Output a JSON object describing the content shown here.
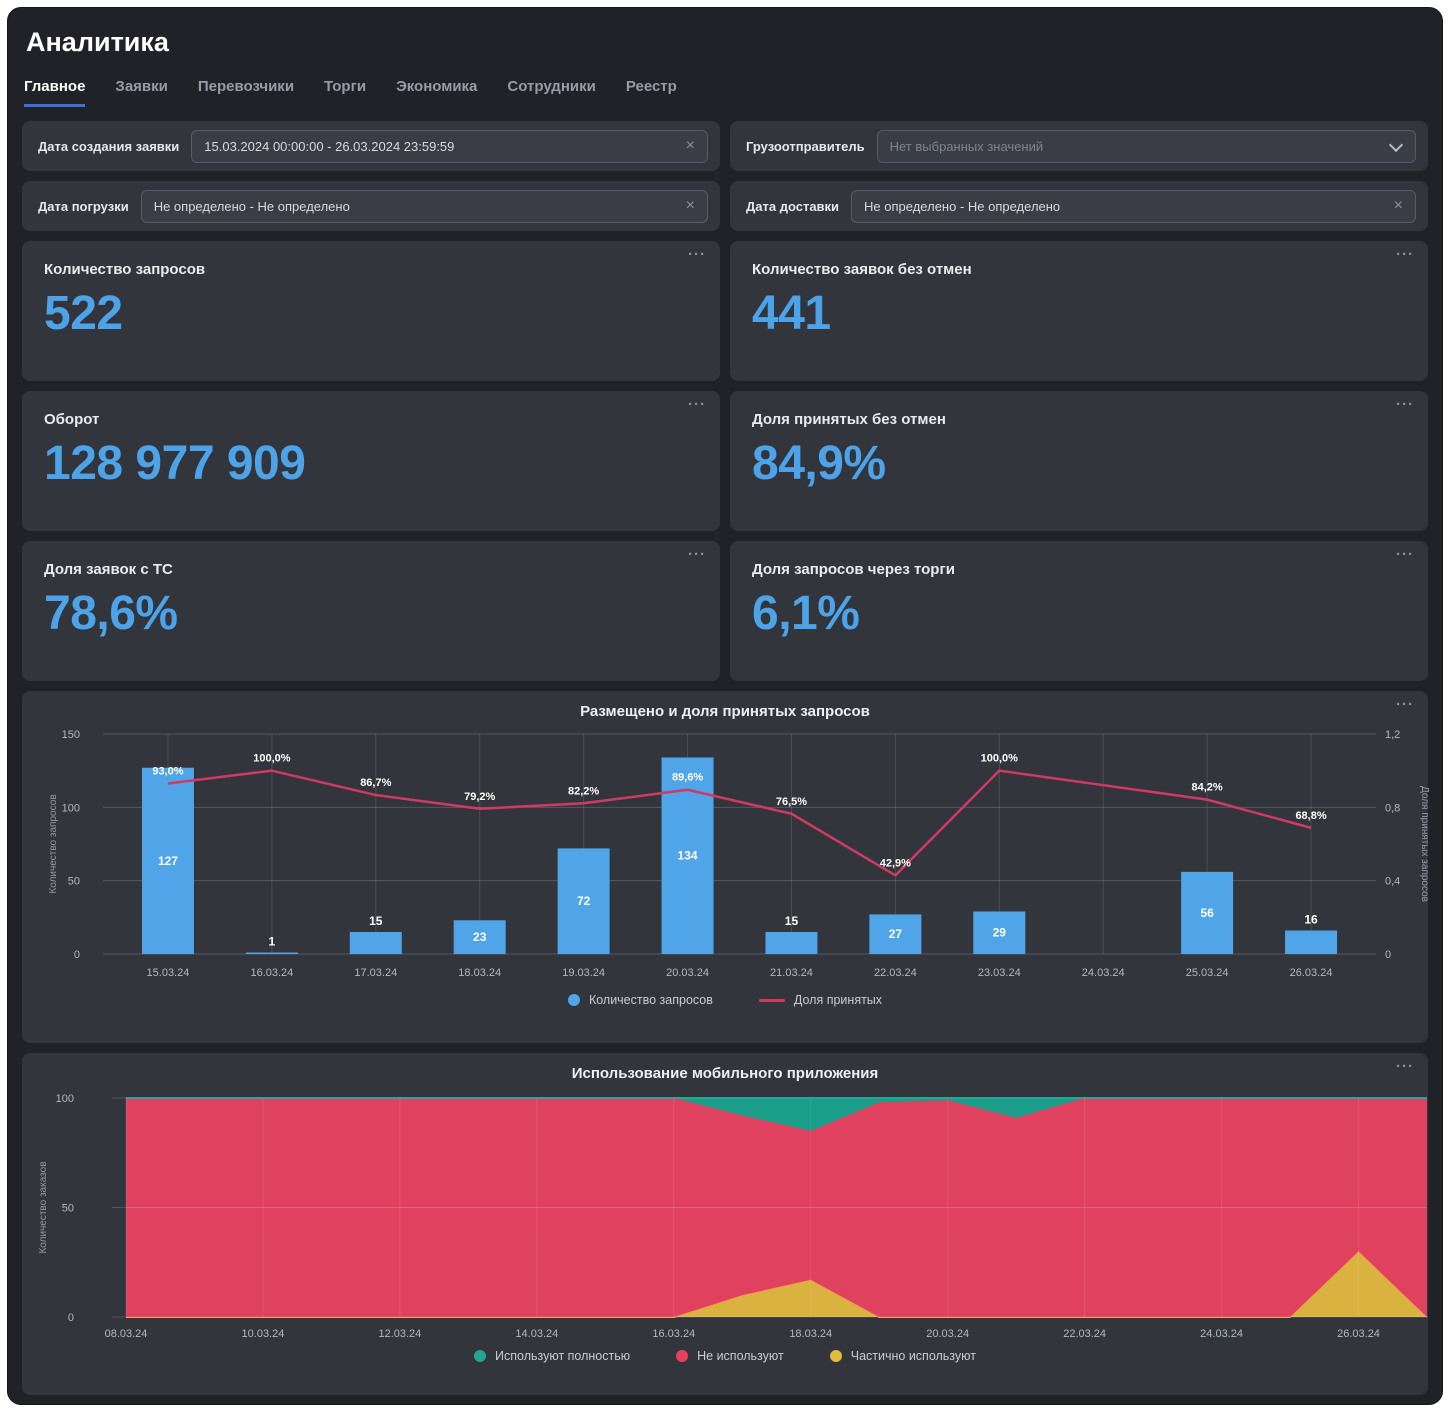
{
  "page": {
    "title": "Аналитика"
  },
  "ui": {
    "ellipsis_icon": "···",
    "clear_icon": "×"
  },
  "tabs": [
    {
      "label": "Главное",
      "active": true
    },
    {
      "label": "Заявки",
      "active": false
    },
    {
      "label": "Перевозчики",
      "active": false
    },
    {
      "label": "Торги",
      "active": false
    },
    {
      "label": "Экономика",
      "active": false
    },
    {
      "label": "Сотрудники",
      "active": false
    },
    {
      "label": "Реестр",
      "active": false
    }
  ],
  "filters": {
    "creation_date": {
      "label": "Дата создания заявки",
      "value": "15.03.2024 00:00:00 - 26.03.2024 23:59:59"
    },
    "shipper": {
      "label": "Грузоотправитель",
      "placeholder": "Нет выбранных значений"
    },
    "loading_date": {
      "label": "Дата погрузки",
      "value": "Не определено - Не определено"
    },
    "delivery_date": {
      "label": "Дата доставки",
      "value": "Не определено - Не определено"
    }
  },
  "kpis": [
    {
      "title": "Количество запросов",
      "value": "522"
    },
    {
      "title": "Количество заявок без отмен",
      "value": "441"
    },
    {
      "title": "Оборот",
      "value": "128 977 909"
    },
    {
      "title": "Доля принятых без отмен",
      "value": "84,9%"
    },
    {
      "title": "Доля заявок с ТС",
      "value": "78,6%"
    },
    {
      "title": "Доля запросов через торги",
      "value": "6,1%"
    }
  ],
  "chart_data": [
    {
      "type": "bar+line",
      "title": "Размещено и доля принятых запросов",
      "categories": [
        "15.03.24",
        "16.03.24",
        "17.03.24",
        "18.03.24",
        "19.03.24",
        "20.03.24",
        "21.03.24",
        "22.03.24",
        "23.03.24",
        "24.03.24",
        "25.03.24",
        "26.03.24"
      ],
      "left_axis": {
        "label": "Количество запросов",
        "max": 150,
        "ticks": [
          150,
          100,
          50,
          0
        ]
      },
      "right_axis": {
        "label": "Доля принятых запросов",
        "max": 1.2,
        "ticks": [
          "1,2",
          "0,8",
          "0,4",
          "0"
        ]
      },
      "series": [
        {
          "name": "Количество запросов",
          "type": "bar",
          "axis": "left",
          "color": "#4fa5e8",
          "values": [
            127,
            1,
            15,
            23,
            72,
            134,
            15,
            27,
            29,
            null,
            56,
            16
          ]
        },
        {
          "name": "Доля принятых",
          "type": "line",
          "axis": "right",
          "color": "#cf3b60",
          "values": [
            0.93,
            1.0,
            0.867,
            0.792,
            0.822,
            0.896,
            0.765,
            0.429,
            1.0,
            null,
            0.842,
            0.688
          ],
          "labels": [
            "93,0%",
            "100,0%",
            "86,7%",
            "79,2%",
            "82,2%",
            "89,6%",
            "76,5%",
            "42,9%",
            "100,0%",
            null,
            "84,2%",
            "68,8%"
          ]
        }
      ],
      "legend": [
        {
          "shape": "dot",
          "color": "#4fa5e8",
          "label": "Количество запросов"
        },
        {
          "shape": "line",
          "color": "#cf3b60",
          "label": "Доля принятых"
        }
      ]
    },
    {
      "type": "area",
      "title": "Использование мобильного приложения",
      "x": [
        "08.03.24",
        "09.03.24",
        "10.03.24",
        "11.03.24",
        "12.03.24",
        "13.03.24",
        "14.03.24",
        "15.03.24",
        "16.03.24",
        "17.03.24",
        "18.03.24",
        "19.03.24",
        "20.03.24",
        "21.03.24",
        "22.03.24",
        "23.03.24",
        "24.03.24",
        "25.03.24",
        "26.03.24",
        "27.03.24"
      ],
      "x_tick_every": 2,
      "y_axis": {
        "label": "Количество заказов",
        "max": 100,
        "ticks": [
          100,
          50,
          0
        ]
      },
      "series": [
        {
          "name": "Частично используют",
          "color": "#d9b23f",
          "stroke": "#ee9d4d",
          "values": [
            0,
            0,
            0,
            0,
            0,
            0,
            0,
            0,
            0,
            10,
            17,
            0,
            0,
            0,
            0,
            0,
            0,
            0,
            30,
            0
          ]
        },
        {
          "name": "Не используют",
          "color": "#e0415f",
          "stroke": "#e0415f",
          "values": [
            100,
            100,
            100,
            100,
            100,
            100,
            100,
            100,
            100,
            82,
            68,
            98,
            99,
            91,
            100,
            100,
            100,
            100,
            70,
            100
          ]
        },
        {
          "name": "Используют полностью",
          "color": "#1a9e89",
          "stroke": "#1a9e89",
          "values": [
            0,
            0,
            0,
            0,
            0,
            0,
            0,
            0,
            0,
            8,
            15,
            2,
            1,
            9,
            0,
            0,
            0,
            0,
            0,
            0
          ]
        }
      ],
      "legend": [
        {
          "shape": "dot",
          "color": "#1fa78f",
          "label": "Используют полностью"
        },
        {
          "shape": "dot",
          "color": "#e8415f",
          "label": "Не используют"
        },
        {
          "shape": "dot",
          "color": "#e2bc3e",
          "label": "Частично используют"
        }
      ]
    }
  ]
}
